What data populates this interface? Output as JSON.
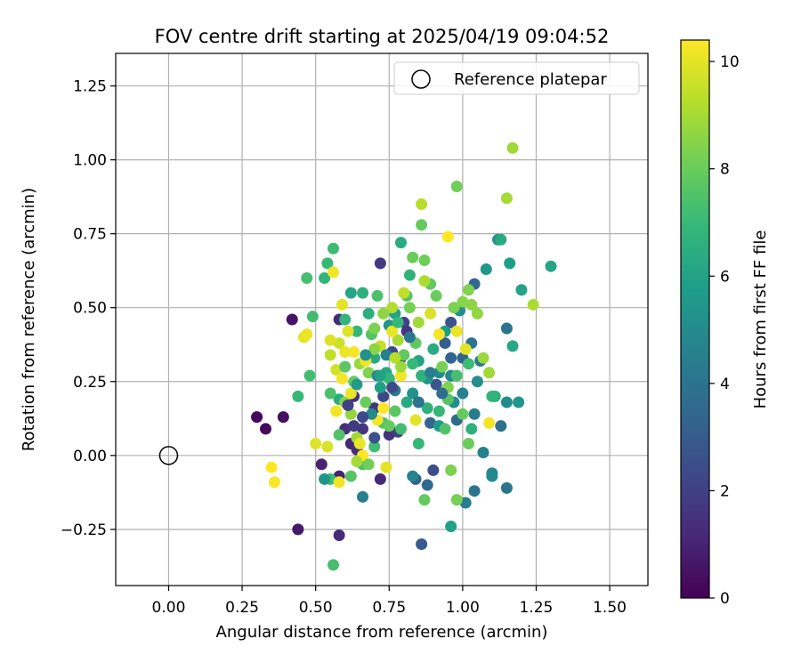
{
  "chart_data": {
    "type": "scatter",
    "title": "FOV centre drift starting at 2025/04/19 09:04:52",
    "xlabel": "Angular distance from reference (arcmin)",
    "ylabel": "Rotation from reference (arcmin)",
    "xlim": [
      -0.18,
      1.63
    ],
    "ylim": [
      -0.44,
      1.36
    ],
    "xticks": [
      0.0,
      0.25,
      0.5,
      0.75,
      1.0,
      1.25,
      1.5
    ],
    "xtick_labels": [
      "0.00",
      "0.25",
      "0.50",
      "0.75",
      "1.00",
      "1.25",
      "1.50"
    ],
    "yticks": [
      -0.25,
      0.0,
      0.25,
      0.5,
      0.75,
      1.0,
      1.25
    ],
    "ytick_labels": [
      "−0.25",
      "0.00",
      "0.25",
      "0.50",
      "0.75",
      "1.00",
      "1.25"
    ],
    "grid": true,
    "legend": {
      "placement": "top-right",
      "entries": [
        {
          "label": "Reference platepar",
          "marker": "open-circle",
          "x": 0.0,
          "y": 0.0
        }
      ]
    },
    "colorbar": {
      "label": "Hours from first FF file",
      "colormap": "viridis",
      "range": [
        0,
        10.4
      ],
      "ticks": [
        0,
        2,
        4,
        6,
        8,
        10
      ],
      "tick_labels": [
        "0",
        "2",
        "4",
        "6",
        "8",
        "10"
      ]
    },
    "colormap_stops": [
      "#440154",
      "#482878",
      "#3e4989",
      "#31688e",
      "#26828e",
      "#1f9e89",
      "#35b779",
      "#6ece58",
      "#b5de2b",
      "#fde725"
    ],
    "series": [
      {
        "points": [
          [
            0.3,
            0.13,
            0.2
          ],
          [
            0.33,
            0.09,
            0.3
          ],
          [
            0.39,
            0.13,
            0.4
          ],
          [
            0.42,
            0.46,
            0.6
          ],
          [
            0.44,
            -0.25,
            0.7
          ],
          [
            0.52,
            -0.03,
            1.0
          ],
          [
            0.58,
            -0.27,
            1.2
          ],
          [
            0.58,
            -0.07,
            1.0
          ],
          [
            0.6,
            0.09,
            1.4
          ],
          [
            0.62,
            0.04,
            1.1
          ],
          [
            0.63,
            0.2,
            1.5
          ],
          [
            0.64,
            0.02,
            1.3
          ],
          [
            0.66,
            0.09,
            1.6
          ],
          [
            0.7,
            0.16,
            1.7
          ],
          [
            0.72,
            0.65,
            1.8
          ],
          [
            0.72,
            -0.08,
            1.2
          ],
          [
            0.75,
            0.07,
            1.5
          ],
          [
            0.78,
            0.08,
            1.9
          ],
          [
            0.79,
            0.33,
            2.0
          ],
          [
            0.8,
            0.45,
            2.1
          ],
          [
            0.58,
            0.46,
            1.3
          ],
          [
            0.73,
            0.2,
            2.2
          ],
          [
            0.76,
            0.35,
            2.3
          ],
          [
            0.81,
            0.42,
            1.6
          ],
          [
            0.9,
            -0.05,
            2.5
          ],
          [
            0.86,
            -0.3,
            3.0
          ],
          [
            0.84,
            -0.08,
            3.2
          ],
          [
            0.88,
            -0.1,
            3.5
          ],
          [
            0.89,
            0.11,
            3.4
          ],
          [
            0.91,
            0.24,
            2.8
          ],
          [
            0.94,
            0.38,
            3.1
          ],
          [
            0.96,
            0.45,
            2.7
          ],
          [
            0.98,
            0.12,
            3.6
          ],
          [
            1.0,
            0.33,
            3.3
          ],
          [
            1.03,
            0.38,
            3.9
          ],
          [
            1.04,
            0.58,
            3.5
          ],
          [
            1.06,
            0.32,
            4.2
          ],
          [
            1.04,
            -0.12,
            4.1
          ],
          [
            1.01,
            -0.16,
            4.4
          ],
          [
            1.07,
            0.01,
            4.6
          ],
          [
            1.1,
            -0.06,
            4.8
          ],
          [
            1.1,
            -0.07,
            4.9
          ],
          [
            1.13,
            0.1,
            3.8
          ],
          [
            1.15,
            0.43,
            4.0
          ],
          [
            1.15,
            -0.11,
            4.0
          ],
          [
            1.04,
            0.14,
            4.3
          ],
          [
            0.66,
            -0.14,
            4.5
          ],
          [
            1.12,
            0.73,
            5.3
          ],
          [
            1.08,
            0.63,
            5.5
          ],
          [
            1.16,
            0.65,
            5.8
          ],
          [
            1.17,
            0.37,
            6.2
          ],
          [
            1.2,
            0.56,
            6.0
          ],
          [
            1.3,
            0.64,
            6.1
          ],
          [
            1.13,
            0.73,
            6.3
          ],
          [
            1.11,
            0.2,
            6.5
          ],
          [
            1.19,
            0.18,
            5.4
          ],
          [
            1.15,
            0.18,
            5.0
          ],
          [
            1.1,
            0.2,
            6.8
          ],
          [
            1.03,
            0.09,
            6.6
          ],
          [
            0.96,
            -0.24,
            5.9
          ],
          [
            0.97,
            0.18,
            5.1
          ],
          [
            0.96,
            0.27,
            4.9
          ],
          [
            0.99,
            0.49,
            5.2
          ],
          [
            0.94,
            0.42,
            5.7
          ],
          [
            0.92,
            0.28,
            5.0
          ],
          [
            0.92,
            0.1,
            5.6
          ],
          [
            0.88,
            0.26,
            5.4
          ],
          [
            0.85,
            0.32,
            6.0
          ],
          [
            0.83,
            0.21,
            5.3
          ],
          [
            0.82,
            0.61,
            6.7
          ],
          [
            0.79,
            0.72,
            6.4
          ],
          [
            0.77,
            0.48,
            5.9
          ],
          [
            0.75,
            0.44,
            5.5
          ],
          [
            0.74,
            0.28,
            6.2
          ],
          [
            0.72,
            0.23,
            5.8
          ],
          [
            0.7,
            0.33,
            6.3
          ],
          [
            0.68,
            0.48,
            6.5
          ],
          [
            0.66,
            0.55,
            6.6
          ],
          [
            0.64,
            0.42,
            6.9
          ],
          [
            0.62,
            0.55,
            6.1
          ],
          [
            0.6,
            0.46,
            6.8
          ],
          [
            0.58,
            0.19,
            6.4
          ],
          [
            0.56,
            0.7,
            7.1
          ],
          [
            0.54,
            0.65,
            7.0
          ],
          [
            0.53,
            0.6,
            6.8
          ],
          [
            0.49,
            0.47,
            7.2
          ],
          [
            0.47,
            0.6,
            7.3
          ],
          [
            0.48,
            0.27,
            7.2
          ],
          [
            0.44,
            0.2,
            7.0
          ],
          [
            0.55,
            0.21,
            7.4
          ],
          [
            0.58,
            0.07,
            7.5
          ],
          [
            0.55,
            -0.08,
            7.1
          ],
          [
            0.56,
            -0.37,
            7.3
          ],
          [
            0.62,
            -0.07,
            7.6
          ],
          [
            0.66,
            -0.03,
            7.4
          ],
          [
            0.7,
            0.03,
            7.2
          ],
          [
            0.73,
            0.11,
            7.5
          ],
          [
            0.77,
            0.15,
            7.7
          ],
          [
            0.8,
            0.34,
            7.8
          ],
          [
            0.81,
            0.54,
            7.6
          ],
          [
            0.83,
            0.67,
            8.0
          ],
          [
            0.86,
            0.78,
            7.9
          ],
          [
            0.87,
            0.66,
            8.1
          ],
          [
            0.89,
            0.58,
            7.8
          ],
          [
            0.91,
            0.54,
            8.0
          ],
          [
            0.93,
            0.3,
            8.2
          ],
          [
            0.95,
            0.23,
            8.4
          ],
          [
            0.97,
            0.5,
            8.3
          ],
          [
            0.98,
            0.91,
            8.1
          ],
          [
            1.0,
            0.52,
            8.5
          ],
          [
            1.02,
            0.56,
            8.4
          ],
          [
            1.03,
            0.51,
            8.6
          ],
          [
            1.05,
            0.48,
            8.7
          ],
          [
            1.07,
            0.33,
            8.8
          ],
          [
            1.09,
            0.28,
            8.9
          ],
          [
            1.15,
            0.87,
            9.0
          ],
          [
            1.17,
            1.04,
            8.9
          ],
          [
            1.24,
            0.51,
            9.1
          ],
          [
            0.86,
            0.85,
            9.3
          ],
          [
            0.87,
            0.59,
            9.1
          ],
          [
            0.8,
            0.55,
            9.4
          ],
          [
            0.78,
            0.39,
            9.0
          ],
          [
            0.76,
            0.5,
            9.2
          ],
          [
            0.72,
            0.37,
            9.5
          ],
          [
            0.7,
            0.36,
            8.6
          ],
          [
            0.68,
            0.28,
            8.4
          ],
          [
            0.65,
            0.31,
            8.8
          ],
          [
            0.64,
            0.06,
            8.9
          ],
          [
            0.62,
            0.14,
            8.7
          ],
          [
            0.6,
            0.18,
            8.5
          ],
          [
            0.58,
            0.38,
            9.6
          ],
          [
            0.57,
            0.29,
            9.7
          ],
          [
            0.55,
            0.34,
            9.4
          ],
          [
            0.54,
            0.03,
            9.8
          ],
          [
            0.5,
            0.04,
            9.9
          ],
          [
            0.46,
            0.4,
            10.0
          ],
          [
            0.47,
            0.41,
            10.1
          ],
          [
            0.56,
            0.62,
            10.2
          ],
          [
            0.59,
            0.51,
            10.0
          ],
          [
            0.61,
            0.42,
            9.9
          ],
          [
            0.63,
            0.35,
            10.3
          ],
          [
            0.65,
            0.04,
            10.1
          ],
          [
            0.67,
            0.32,
            10.2
          ],
          [
            0.69,
            0.41,
            10.0
          ],
          [
            0.71,
            0.12,
            10.3
          ],
          [
            0.73,
            0.16,
            10.4
          ],
          [
            0.76,
            0.42,
            10.1
          ],
          [
            0.79,
            0.27,
            10.2
          ],
          [
            0.84,
            0.12,
            10.0
          ],
          [
            0.89,
            0.48,
            9.8
          ],
          [
            0.92,
            0.41,
            10.3
          ],
          [
            0.95,
            0.74,
            10.4
          ],
          [
            0.98,
            0.42,
            10.1
          ],
          [
            1.01,
            0.36,
            10.0
          ],
          [
            1.09,
            0.11,
            10.2
          ],
          [
            0.35,
            -0.04,
            10.4
          ],
          [
            0.36,
            -0.09,
            10.3
          ],
          [
            0.58,
            -0.09,
            10.2
          ],
          [
            0.6,
            0.35,
            10.1
          ],
          [
            0.66,
            0.0,
            10.4
          ],
          [
            0.74,
            -0.04,
            10.0
          ],
          [
            0.55,
            0.39,
            9.9
          ],
          [
            0.59,
            0.26,
            10.3
          ],
          [
            0.62,
            0.21,
            10.1
          ],
          [
            0.57,
            0.15,
            10.2
          ],
          [
            0.69,
            0.41,
            7.6
          ],
          [
            0.71,
            0.54,
            7.4
          ],
          [
            0.75,
            0.26,
            6.9
          ],
          [
            0.78,
            0.45,
            7.0
          ],
          [
            0.82,
            0.5,
            8.2
          ],
          [
            0.84,
            0.38,
            7.8
          ],
          [
            0.86,
            0.27,
            6.7
          ],
          [
            0.88,
            0.16,
            6.6
          ],
          [
            0.9,
            0.36,
            6.4
          ],
          [
            0.92,
            0.15,
            6.9
          ],
          [
            0.94,
            0.09,
            7.5
          ],
          [
            0.96,
            -0.05,
            8.3
          ],
          [
            0.98,
            0.27,
            7.3
          ],
          [
            1.0,
            0.14,
            7.9
          ],
          [
            1.02,
            0.31,
            7.1
          ],
          [
            0.6,
            0.3,
            7.7
          ],
          [
            0.63,
            0.25,
            7.9
          ],
          [
            0.67,
            0.18,
            8.0
          ],
          [
            0.7,
            0.43,
            8.3
          ],
          [
            0.73,
            0.48,
            8.6
          ],
          [
            0.85,
            0.04,
            7.0
          ],
          [
            0.87,
            -0.15,
            7.9
          ],
          [
            0.98,
            -0.15,
            8.2
          ],
          [
            0.95,
            0.19,
            7.6
          ],
          [
            1.02,
            0.04,
            8.0
          ],
          [
            0.64,
            0.24,
            5.6
          ],
          [
            0.67,
            0.34,
            5.2
          ],
          [
            0.69,
            0.14,
            5.0
          ],
          [
            0.71,
            0.27,
            4.8
          ],
          [
            0.74,
            0.34,
            4.6
          ],
          [
            0.77,
            0.22,
            4.3
          ],
          [
            0.82,
            0.4,
            4.1
          ],
          [
            0.85,
            0.18,
            3.9
          ],
          [
            0.93,
            0.21,
            3.7
          ],
          [
            0.96,
            0.33,
            3.4
          ],
          [
            0.61,
            0.17,
            2.0
          ],
          [
            0.63,
            0.1,
            1.8
          ],
          [
            0.66,
            0.13,
            2.3
          ],
          [
            0.7,
            0.06,
            2.6
          ],
          [
            0.76,
            0.23,
            2.4
          ],
          [
            0.53,
            -0.08,
            5.5
          ],
          [
            0.83,
            -0.07,
            4.7
          ],
          [
            0.89,
            0.28,
            4.4
          ],
          [
            1.0,
            0.21,
            4.6
          ],
          [
            1.05,
            0.25,
            5.1
          ],
          [
            0.79,
            0.09,
            7.2
          ],
          [
            0.81,
            0.18,
            6.3
          ],
          [
            0.75,
            0.1,
            7.9
          ],
          [
            0.68,
            -0.03,
            8.1
          ],
          [
            0.64,
            -0.02,
            9.0
          ],
          [
            0.72,
            0.27,
            6.0
          ],
          [
            0.77,
            0.33,
            9.3
          ],
          [
            0.79,
            0.3,
            8.8
          ],
          [
            0.83,
            0.31,
            7.0
          ],
          [
            0.85,
            0.45,
            8.9
          ]
        ]
      }
    ]
  }
}
